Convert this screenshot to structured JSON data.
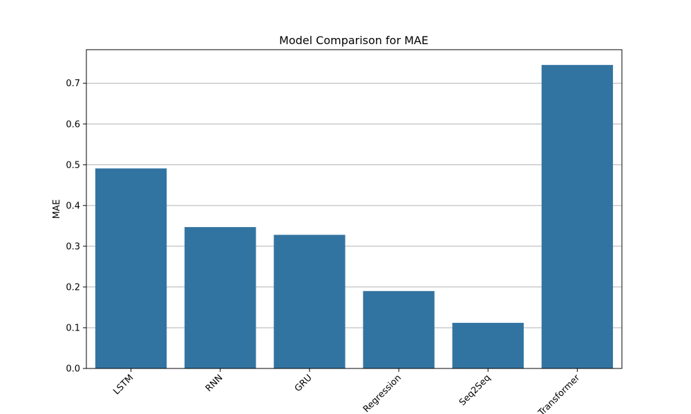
{
  "chart_data": {
    "type": "bar",
    "title": "Model Comparison for MAE",
    "xlabel": "",
    "ylabel": "MAE",
    "categories": [
      "LSTM",
      "RNN",
      "GRU",
      "Regression",
      "Seq2Seq",
      "Transformer"
    ],
    "values": [
      0.491,
      0.347,
      0.328,
      0.19,
      0.112,
      0.745
    ],
    "ylim": [
      0,
      0.7825
    ],
    "yticks": [
      "0.0",
      "0.1",
      "0.2",
      "0.3",
      "0.4",
      "0.5",
      "0.6",
      "0.7"
    ],
    "grid": "horizontal",
    "bar_color": "#3274a1",
    "grid_color": "#b0b0b0"
  }
}
